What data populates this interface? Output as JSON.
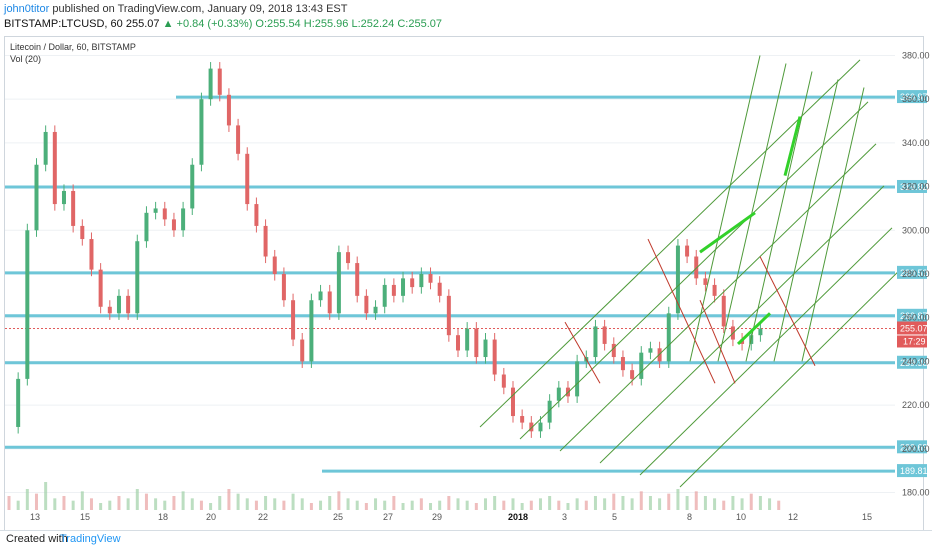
{
  "header": {
    "author": "john0titor",
    "published": "published on TradingView.com, January 09, 2018 13:43 EST",
    "symbol": "BITSTAMP:LTCUSD, 60",
    "price": "255.07",
    "change": "▲ +0.84 (+0.33%)",
    "open": "O:255.54",
    "high": "H:255.96",
    "low": "L:252.24",
    "close": "C:255.07"
  },
  "footer": {
    "created": "Created with",
    "brand": "TradingView"
  },
  "chart_data": {
    "type": "candlestick",
    "title": "Litecoin / Dollar, 60, BITSTAMP",
    "indicator": "Vol (20)",
    "y_ticks": [
      180,
      200,
      220,
      240,
      260,
      280,
      300,
      320,
      340,
      360,
      380
    ],
    "ylim": [
      172,
      388
    ],
    "x_ticks": [
      "13",
      "15",
      "18",
      "20",
      "22",
      "25",
      "27",
      "29",
      "2018",
      "3",
      "5",
      "8",
      "10",
      "12",
      "15"
    ],
    "current_price": "255.07",
    "countdown": "17:29",
    "horizontal_levels": [
      {
        "label": "360.97",
        "value": 360.97
      },
      {
        "label": "319.82",
        "value": 319.82
      },
      {
        "label": "280.52",
        "value": 280.52
      },
      {
        "label": "260.87",
        "value": 260.87
      },
      {
        "label": "239.38",
        "value": 239.38
      },
      {
        "label": "200.69",
        "value": 200.69
      },
      {
        "label": "189.81",
        "value": 189.81
      }
    ],
    "price_path": [
      [
        0,
        210
      ],
      [
        2,
        232
      ],
      [
        3,
        300
      ],
      [
        4,
        330
      ],
      [
        5,
        345
      ],
      [
        6,
        312
      ],
      [
        7,
        318
      ],
      [
        8,
        302
      ],
      [
        9,
        296
      ],
      [
        10,
        282
      ],
      [
        11,
        265
      ],
      [
        12,
        262
      ],
      [
        13,
        270
      ],
      [
        14,
        262
      ],
      [
        15,
        295
      ],
      [
        17,
        308
      ],
      [
        19,
        310
      ],
      [
        20,
        305
      ],
      [
        21,
        300
      ],
      [
        22,
        310
      ],
      [
        23,
        330
      ],
      [
        24,
        360
      ],
      [
        25,
        374
      ],
      [
        26,
        362
      ],
      [
        27,
        348
      ],
      [
        28,
        335
      ],
      [
        29,
        312
      ],
      [
        30,
        302
      ],
      [
        31,
        288
      ],
      [
        32,
        280
      ],
      [
        33,
        268
      ],
      [
        34,
        250
      ],
      [
        35,
        240
      ],
      [
        36,
        268
      ],
      [
        37,
        272
      ],
      [
        38,
        262
      ],
      [
        39,
        290
      ],
      [
        40,
        285
      ],
      [
        41,
        270
      ],
      [
        42,
        262
      ],
      [
        43,
        265
      ],
      [
        44,
        275
      ],
      [
        45,
        270
      ],
      [
        46,
        278
      ],
      [
        47,
        274
      ],
      [
        48,
        280
      ],
      [
        49,
        276
      ],
      [
        50,
        270
      ],
      [
        51,
        252
      ],
      [
        52,
        245
      ],
      [
        53,
        255
      ],
      [
        54,
        242
      ],
      [
        55,
        250
      ],
      [
        56,
        234
      ],
      [
        57,
        228
      ],
      [
        58,
        215
      ],
      [
        59,
        212
      ],
      [
        60,
        208
      ],
      [
        61,
        212
      ],
      [
        62,
        222
      ],
      [
        63,
        228
      ],
      [
        64,
        224
      ],
      [
        65,
        240
      ],
      [
        66,
        242
      ],
      [
        67,
        256
      ],
      [
        68,
        248
      ],
      [
        69,
        242
      ],
      [
        70,
        236
      ],
      [
        71,
        232
      ],
      [
        72,
        244
      ],
      [
        73,
        246
      ],
      [
        74,
        240
      ],
      [
        75,
        262
      ],
      [
        76,
        293
      ],
      [
        77,
        288
      ],
      [
        78,
        278
      ],
      [
        79,
        275
      ],
      [
        80,
        270
      ],
      [
        81,
        256
      ],
      [
        82,
        250
      ],
      [
        83,
        248
      ],
      [
        84,
        252
      ],
      [
        85,
        255
      ]
    ],
    "volume": [
      6,
      4,
      9,
      7,
      12,
      5,
      6,
      4,
      8,
      5,
      3,
      4,
      6,
      5,
      9,
      7,
      5,
      4,
      6,
      8,
      5,
      4,
      3,
      6,
      9,
      7,
      5,
      4,
      6,
      5,
      4,
      7,
      5,
      3,
      4,
      6,
      8,
      5,
      4,
      3,
      5,
      4,
      6,
      3,
      4,
      5,
      3,
      4,
      6,
      5,
      4,
      3,
      5,
      6,
      4,
      5,
      3,
      4,
      5,
      6,
      4,
      3,
      5,
      4,
      6,
      5,
      7,
      6,
      5,
      8,
      6,
      5,
      7,
      9,
      6,
      8,
      6,
      5,
      4,
      6,
      5,
      7,
      6,
      5,
      4
    ],
    "drawings": {
      "green_channel": "rising parallel channel lines",
      "red_channel": "falling parallel channel lines",
      "arrows": "up arrows (bright green)"
    }
  }
}
